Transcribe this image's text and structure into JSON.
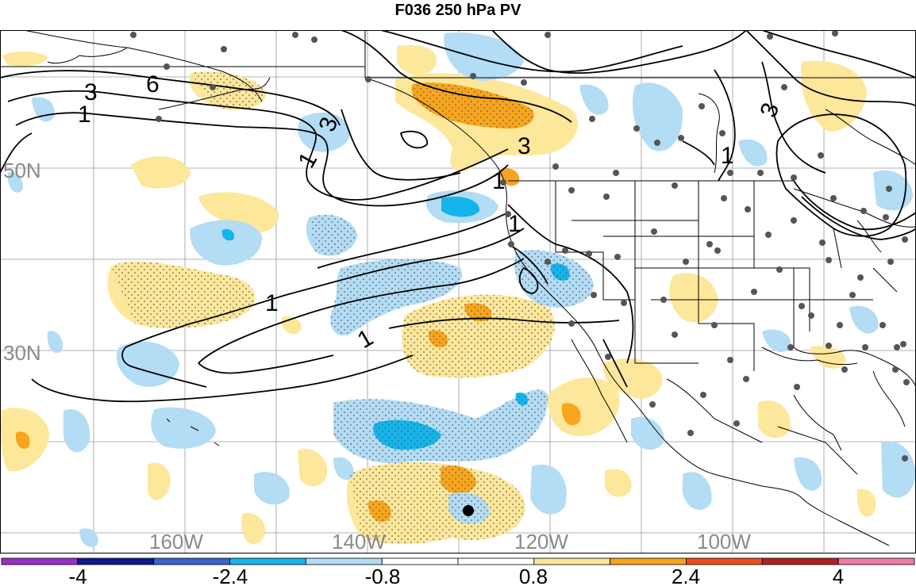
{
  "title": "F036 250 hPa PV",
  "map": {
    "lat_labels": [
      "50N",
      "30N"
    ],
    "lon_labels": [
      "160W",
      "140W",
      "120W",
      "100W"
    ],
    "contour_labels": [
      "6",
      "3",
      "1",
      "1",
      "3",
      "1",
      "3",
      "1",
      "1",
      "1",
      "3",
      "1"
    ],
    "colors": {
      "gridline": "#9a9a9a",
      "coast": "#000000",
      "contour": "#000000",
      "station": "#555555",
      "pos_light": "#fde79a",
      "pos_mid": "#f7a51c",
      "neg_light": "#b3dcf5",
      "neg_mid": "#14b4ec"
    }
  },
  "colorbar": {
    "levels": [
      -4.8,
      -4,
      -3.2,
      -2.4,
      -1.6,
      -0.8,
      0,
      0.8,
      1.6,
      2.4,
      3.2,
      4,
      4.8
    ],
    "colors": [
      "#9b30c8",
      "#0c1a8c",
      "#3c63c8",
      "#14b4ec",
      "#b3dcf5",
      "#ffffff",
      "#ffffff",
      "#fde79a",
      "#f7a51c",
      "#ef4c1f",
      "#b02222",
      "#f07aa8"
    ],
    "tick_labels": [
      "-4",
      "-2.4",
      "-0.8",
      "0.8",
      "2.4",
      "4"
    ]
  }
}
